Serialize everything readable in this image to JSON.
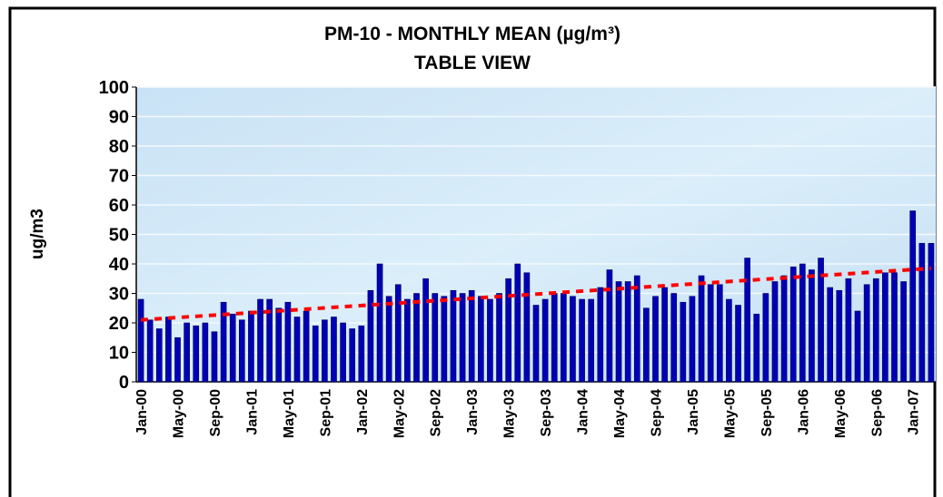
{
  "chart_data": {
    "type": "bar",
    "title": "PM-10 - MONTHLY MEAN (µg/m³)",
    "subtitle": "TABLE VIEW",
    "y_label": "ug/m3",
    "categories": [
      "Jan-00",
      null,
      null,
      null,
      "May-00",
      null,
      null,
      null,
      "Sep-00",
      null,
      null,
      null,
      "Jan-01",
      null,
      null,
      null,
      "May-01",
      null,
      null,
      null,
      "Sep-01",
      null,
      null,
      null,
      "Jan-02",
      null,
      null,
      null,
      "May-02",
      null,
      null,
      null,
      "Sep-02",
      null,
      null,
      null,
      "Jan-03",
      null,
      null,
      null,
      "May-03",
      null,
      null,
      null,
      "Sep-03",
      null,
      null,
      null,
      "Jan-04",
      null,
      null,
      null,
      "May-04",
      null,
      null,
      null,
      "Sep-04",
      null,
      null,
      null,
      "Jan-05",
      null,
      null,
      null,
      "May-05",
      null,
      null,
      null,
      "Sep-05",
      null,
      null,
      null,
      "Jan-06",
      null,
      null,
      null,
      "May-06",
      null,
      null,
      null,
      "Sep-06",
      null,
      null,
      null,
      "Jan-07",
      null,
      null
    ],
    "values": [
      28,
      21,
      18,
      22,
      15,
      20,
      19,
      20,
      17,
      27,
      23,
      21,
      24,
      28,
      28,
      25,
      27,
      22,
      24,
      19,
      21,
      22,
      20,
      18,
      19,
      31,
      40,
      29,
      33,
      28,
      30,
      35,
      30,
      29,
      31,
      30,
      31,
      29,
      28,
      30,
      35,
      40,
      37,
      26,
      28,
      30,
      30,
      29,
      28,
      28,
      32,
      38,
      34,
      34,
      36,
      25,
      29,
      32,
      30,
      27,
      29,
      36,
      33,
      33,
      28,
      26,
      42,
      23,
      30,
      34,
      36,
      39,
      40,
      38,
      42,
      32,
      31,
      35,
      24,
      33,
      35,
      37,
      37,
      34,
      58,
      47,
      47
    ],
    "color": "#0000b4",
    "trend": {
      "start": 21,
      "end": 38.5,
      "color": "#ff0000"
    },
    "ylim": [
      0,
      100
    ],
    "yticks": [
      0,
      10,
      20,
      30,
      40,
      50,
      60,
      70,
      80,
      90,
      100
    ],
    "grid": true
  }
}
